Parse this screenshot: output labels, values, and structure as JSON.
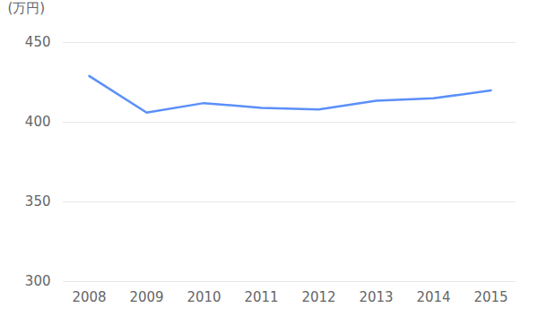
{
  "chart_data": {
    "type": "line",
    "y_label": "(万円)",
    "categories": [
      "2008",
      "2009",
      "2010",
      "2011",
      "2012",
      "2013",
      "2014",
      "2015"
    ],
    "values": [
      429,
      406,
      412,
      409,
      408,
      413.5,
      415,
      420
    ],
    "color": "#5b8ff9",
    "ylim": [
      300,
      450
    ],
    "yticks": [
      300,
      350,
      400,
      450
    ],
    "grid": true
  }
}
